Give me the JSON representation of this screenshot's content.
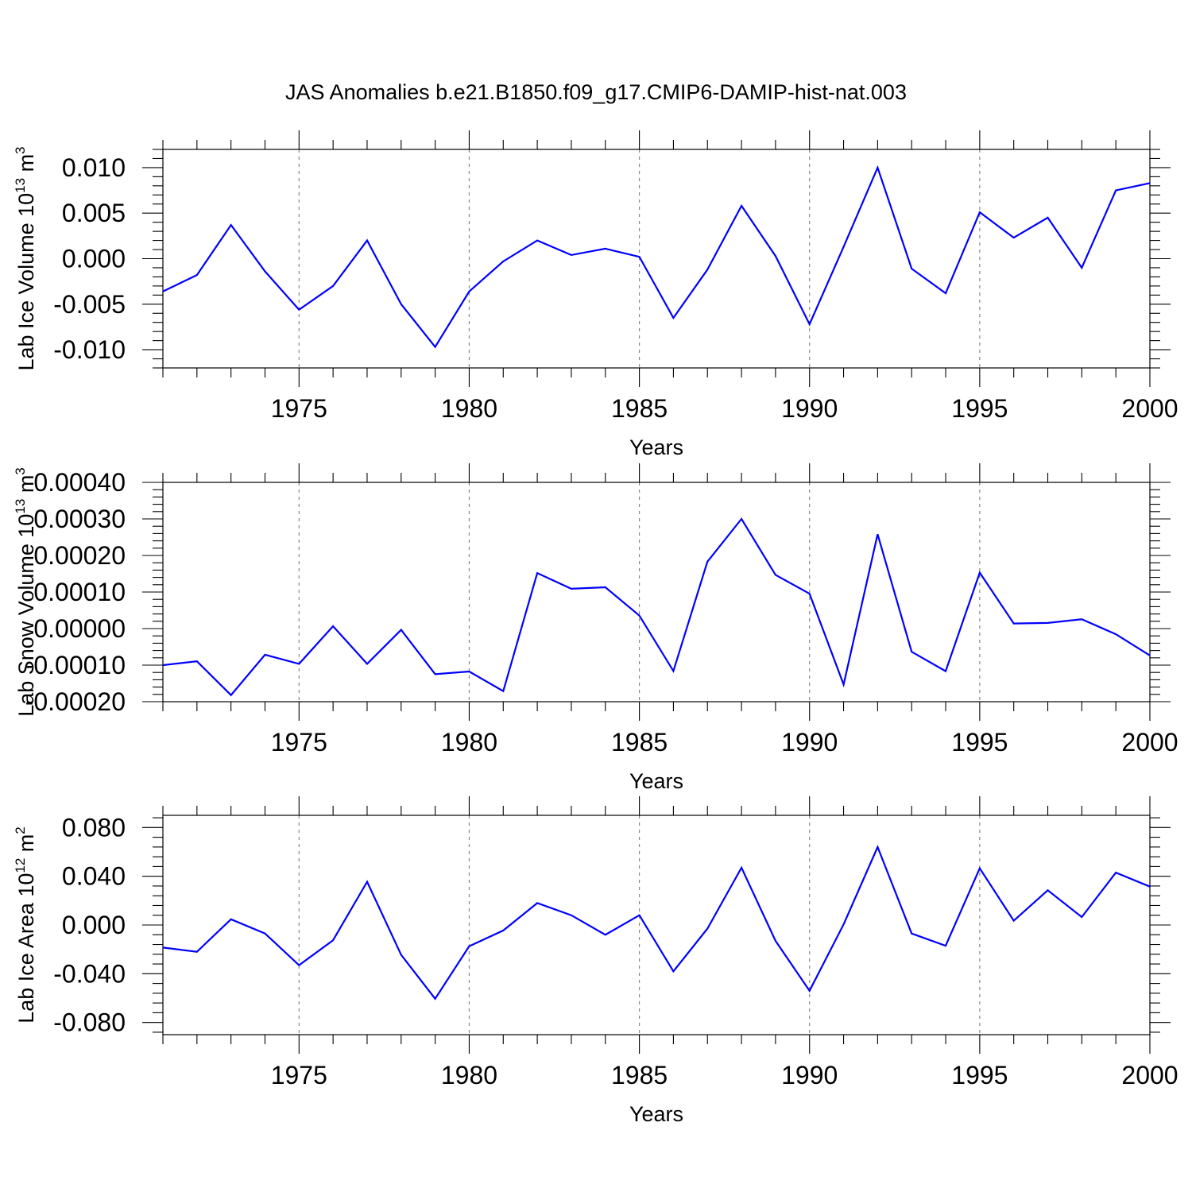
{
  "chart_data": {
    "type": "line",
    "title": "JAS Anomalies b.e21.B1850.f09_g17.CMIP6-DAMIP-hist-nat.003",
    "line_color": "#0000ff",
    "years": [
      1971,
      1972,
      1973,
      1974,
      1975,
      1976,
      1977,
      1978,
      1979,
      1980,
      1981,
      1982,
      1983,
      1984,
      1985,
      1986,
      1987,
      1988,
      1989,
      1990,
      1991,
      1992,
      1993,
      1994,
      1995,
      1996,
      1997,
      1998,
      1999,
      2000
    ],
    "xlim": [
      1971,
      2000
    ],
    "x_ticks": [
      "1975",
      "1980",
      "1985",
      "1990",
      "1995",
      "2000"
    ],
    "panels": [
      {
        "id": "ice-volume",
        "ylabel": "Lab Ice Volume 10",
        "ylabel_sup": "13",
        "ylabel_unit": "m",
        "ylabel_unit_sup": "3",
        "xlabel": "Years",
        "ylim": [
          -0.012,
          0.012
        ],
        "y_ticks": [
          0.01,
          0.005,
          0.0,
          -0.005,
          -0.01
        ],
        "y_tick_labels": [
          "0.010",
          "0.005",
          "0.000",
          "-0.005",
          "-0.010"
        ],
        "values": [
          -0.0036,
          -0.0018,
          0.0037,
          -0.0014,
          -0.0056,
          -0.003,
          0.002,
          -0.005,
          -0.0097,
          -0.0036,
          -0.0003,
          0.002,
          0.0004,
          0.0011,
          0.0002,
          -0.0065,
          -0.0012,
          0.0058,
          0.0003,
          -0.0072,
          0.0013,
          0.01,
          -0.0011,
          -0.0038,
          0.0051,
          0.0023,
          0.0045,
          -0.001,
          0.0075,
          0.0083
        ]
      },
      {
        "id": "snow-volume",
        "ylabel": "Lab Snow Volume 10",
        "ylabel_sup": "13",
        "ylabel_unit": "m",
        "ylabel_unit_sup": "3",
        "xlabel": "Years",
        "ylim": [
          -0.0002,
          0.0004
        ],
        "y_ticks": [
          0.0004,
          0.0003,
          0.0002,
          0.0001,
          0.0,
          -0.0001,
          -0.0002
        ],
        "y_tick_labels": [
          "0.00040",
          "0.00030",
          "0.00020",
          "0.00010",
          "0.00000",
          "-0.00010",
          "-0.00020"
        ],
        "values": [
          -0.0001,
          -8.95e-05,
          -0.000182,
          -7.15e-05,
          -9.65e-05,
          6.5e-06,
          -9.65e-05,
          -3.5e-06,
          -0.0001245,
          -0.0001175,
          -0.000171,
          0.000152,
          0.000109,
          0.000113,
          3.55e-05,
          -0.000116,
          0.000183,
          0.0003,
          0.000147,
          9.55e-05,
          -0.000153,
          0.000258,
          -6.35e-05,
          -0.0001165,
          0.000153,
          1.4e-05,
          1.55e-05,
          2.55e-05,
          -1.55e-05,
          -7.35e-05
        ]
      },
      {
        "id": "ice-area",
        "ylabel": "Lab Ice Area 10",
        "ylabel_sup": "12",
        "ylabel_unit": "m",
        "ylabel_unit_sup": "2",
        "xlabel": "Years",
        "ylim": [
          -0.09,
          0.09
        ],
        "y_ticks": [
          0.08,
          0.04,
          0.0,
          -0.04,
          -0.08
        ],
        "y_tick_labels": [
          "0.080",
          "0.040",
          "0.000",
          "-0.040",
          "-0.080"
        ],
        "values": [
          -0.0185,
          -0.022,
          0.0047,
          -0.007,
          -0.033,
          -0.0125,
          0.0355,
          -0.0245,
          -0.0605,
          -0.0175,
          -0.0045,
          0.018,
          0.008,
          -0.008,
          0.008,
          -0.038,
          -0.003,
          0.047,
          -0.013,
          -0.054,
          0.0005,
          0.064,
          -0.007,
          -0.017,
          0.0465,
          0.0035,
          0.0285,
          0.0065,
          0.043,
          0.0315
        ]
      }
    ]
  }
}
